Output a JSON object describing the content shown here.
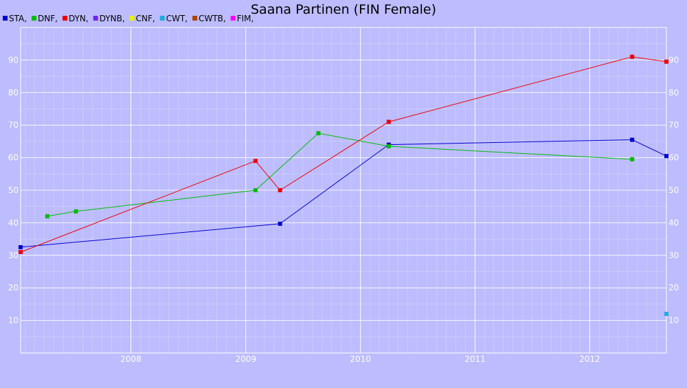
{
  "chart_data": {
    "type": "line",
    "title": "Saana Partinen (FIN Female)",
    "xlabel": "",
    "ylabel": "",
    "xlim": [
      "2007-01-15",
      "2012-09-01"
    ],
    "ylim": [
      0,
      100
    ],
    "x_ticks": [
      "2008",
      "2009",
      "2010",
      "2011",
      "2012"
    ],
    "y_ticks": [
      "10",
      "20",
      "30",
      "40",
      "50",
      "60",
      "70",
      "80",
      "90"
    ],
    "grid": true,
    "legend_position": "top-left",
    "legend": [
      {
        "label": "STA,",
        "color": "#0000cc"
      },
      {
        "label": "DNF,",
        "color": "#00bb00"
      },
      {
        "label": "DYN,",
        "color": "#ee0000"
      },
      {
        "label": "DYNB,",
        "color": "#7722ee"
      },
      {
        "label": "CNF,",
        "color": "#eeee00"
      },
      {
        "label": "CWT,",
        "color": "#22aadd"
      },
      {
        "label": "CWTB,",
        "color": "#aa4400"
      },
      {
        "label": "FIM,",
        "color": "#ff00ff"
      }
    ],
    "series": [
      {
        "key": "STA",
        "color": "#0000cc",
        "points": [
          {
            "x": "2007-01-15",
            "y": 32.5
          },
          {
            "x": "2009-04-20",
            "y": 39.7
          },
          {
            "x": "2010-04-01",
            "y": 64
          },
          {
            "x": "2012-05-15",
            "y": 65.5
          },
          {
            "x": "2012-09-01",
            "y": 60.5
          }
        ]
      },
      {
        "key": "DNF",
        "color": "#00bb00",
        "points": [
          {
            "x": "2007-04-10",
            "y": 42
          },
          {
            "x": "2007-07-10",
            "y": 43.5
          },
          {
            "x": "2009-02-01",
            "y": 50
          },
          {
            "x": "2009-08-20",
            "y": 67.5
          },
          {
            "x": "2010-04-01",
            "y": 63.5
          },
          {
            "x": "2012-05-15",
            "y": 59.5
          }
        ]
      },
      {
        "key": "DYN",
        "color": "#ee0000",
        "points": [
          {
            "x": "2007-01-15",
            "y": 31
          },
          {
            "x": "2009-02-01",
            "y": 59
          },
          {
            "x": "2009-04-20",
            "y": 50
          },
          {
            "x": "2010-04-01",
            "y": 71
          },
          {
            "x": "2012-05-15",
            "y": 91
          },
          {
            "x": "2012-09-01",
            "y": 89.5
          }
        ]
      },
      {
        "key": "CWT",
        "color": "#22aadd",
        "points": [
          {
            "x": "2012-09-01",
            "y": 12
          }
        ]
      }
    ]
  }
}
